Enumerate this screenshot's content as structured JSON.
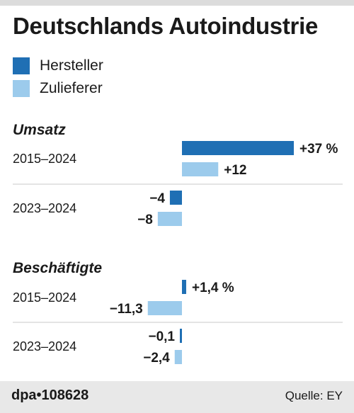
{
  "title": "Deutschlands Autoindustrie",
  "legend": [
    {
      "label": "Hersteller",
      "color": "#1f6fb4"
    },
    {
      "label": "Zulieferer",
      "color": "#9ccbec"
    }
  ],
  "footer": {
    "logo": "dpa•108628",
    "source": "Quelle: EY"
  },
  "chart_data": {
    "type": "bar",
    "orientation": "horizontal",
    "unit": "%",
    "title": "Deutschlands Autoindustrie",
    "series_names": [
      "Hersteller",
      "Zulieferer"
    ],
    "sections": [
      {
        "title": "Umsatz",
        "groups": [
          {
            "period": "2015–2024",
            "values": [
              37,
              12
            ],
            "labels": [
              "+37 %",
              "+12"
            ]
          },
          {
            "period": "2023–2024",
            "values": [
              -4,
              -8
            ],
            "labels": [
              "−4",
              "−8"
            ]
          }
        ]
      },
      {
        "title": "Beschäftigte",
        "groups": [
          {
            "period": "2015–2024",
            "values": [
              1.4,
              -11.3
            ],
            "labels": [
              "+1,4 %",
              "−11,3"
            ]
          },
          {
            "period": "2023–2024",
            "values": [
              -0.1,
              -2.4
            ],
            "labels": [
              "−0,1",
              "−2,4"
            ]
          }
        ]
      }
    ],
    "grid": false,
    "legend_position": "top-left"
  }
}
